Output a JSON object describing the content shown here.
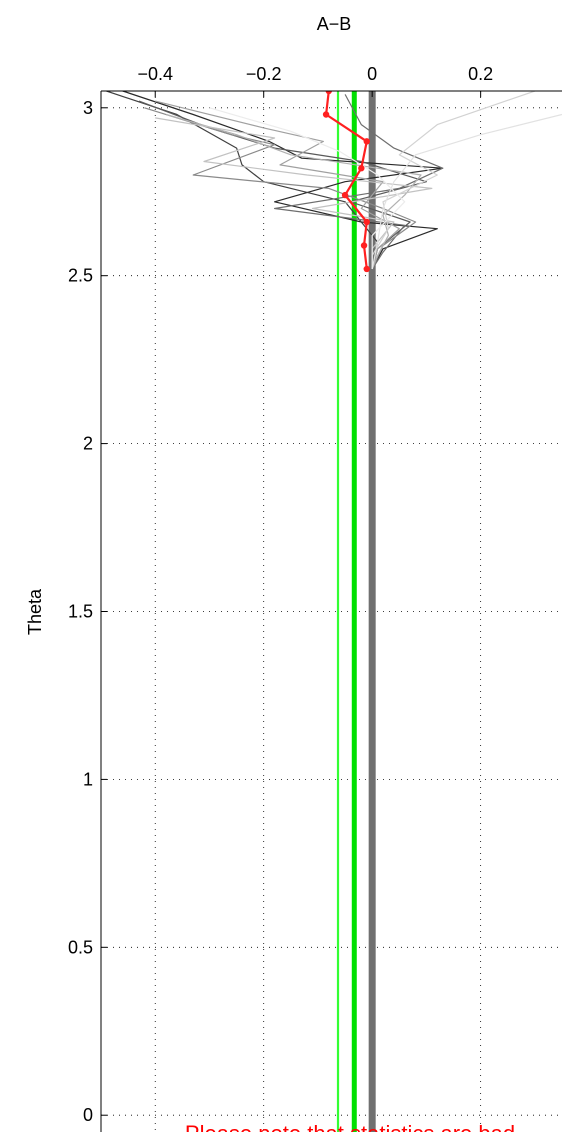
{
  "chart_data": {
    "type": "line",
    "title": "A−B",
    "xlabel": "A−B",
    "ylabel": "Theta",
    "xlim": [
      -0.5,
      0.35
    ],
    "ylim": [
      -0.05,
      3.05
    ],
    "x_ticks": [
      -0.4,
      -0.2,
      0,
      0.2
    ],
    "x_tick_labels": [
      "−0.4",
      "−0.2",
      "0",
      "0.2"
    ],
    "y_ticks": [
      0,
      0.5,
      1,
      1.5,
      2,
      2.5,
      3
    ],
    "y_tick_labels": [
      "0",
      "0.5",
      "1",
      "1.5",
      "2",
      "2.5",
      "3"
    ],
    "x_axis_position": "top",
    "grid": true,
    "grid_style": "dotted",
    "profiles_color": "#555555",
    "mean_color": "#ff2020",
    "green_color": "#00ee00",
    "zero_band_color": "#6e6e6e",
    "vertical_lines": [
      {
        "x": -0.063,
        "color": "#33ff33",
        "width": 2.2
      },
      {
        "x": -0.033,
        "color": "#00e000",
        "width": 5
      },
      {
        "x": 0.0,
        "color": "#707070",
        "width": 7
      }
    ],
    "series": [
      {
        "color": "#2a2a2a",
        "points": [
          [
            -0.46,
            3.05
          ],
          [
            -0.33,
            2.98
          ],
          [
            -0.19,
            2.9
          ],
          [
            -0.13,
            2.85
          ],
          [
            0.13,
            2.82
          ],
          [
            -0.05,
            2.78
          ],
          [
            -0.18,
            2.72
          ],
          [
            -0.02,
            2.66
          ],
          [
            0.12,
            2.64
          ],
          [
            0.02,
            2.58
          ],
          [
            0.0,
            2.52
          ]
        ]
      },
      {
        "color": "#404040",
        "points": [
          [
            -0.49,
            3.05
          ],
          [
            -0.36,
            2.98
          ],
          [
            -0.25,
            2.88
          ],
          [
            -0.24,
            2.83
          ],
          [
            -0.2,
            2.78
          ],
          [
            -0.05,
            2.72
          ],
          [
            -0.02,
            2.66
          ],
          [
            0.01,
            2.6
          ],
          [
            0.0,
            2.52
          ]
        ]
      },
      {
        "color": "#5a5a5a",
        "points": [
          [
            -0.43,
            3.02
          ],
          [
            -0.3,
            2.94
          ],
          [
            -0.18,
            2.88
          ],
          [
            -0.02,
            2.84
          ],
          [
            0.1,
            2.78
          ],
          [
            -0.04,
            2.72
          ],
          [
            0.07,
            2.66
          ],
          [
            0.01,
            2.58
          ],
          [
            0.0,
            2.52
          ]
        ]
      },
      {
        "color": "#6e6e6e",
        "points": [
          [
            -0.05,
            3.04
          ],
          [
            -0.02,
            2.95
          ],
          [
            0.04,
            2.88
          ],
          [
            0.13,
            2.82
          ],
          [
            0.05,
            2.76
          ],
          [
            -0.18,
            2.7
          ],
          [
            0.06,
            2.65
          ],
          [
            0.02,
            2.57
          ],
          [
            0.0,
            2.52
          ]
        ]
      },
      {
        "color": "#8a8a8a",
        "points": [
          [
            -0.42,
            3.0
          ],
          [
            -0.26,
            2.92
          ],
          [
            -0.18,
            2.89
          ],
          [
            -0.33,
            2.8
          ],
          [
            -0.08,
            2.76
          ],
          [
            0.02,
            2.7
          ],
          [
            0.08,
            2.66
          ],
          [
            0.02,
            2.59
          ],
          [
            0.0,
            2.52
          ]
        ]
      },
      {
        "color": "#a0a0a0",
        "points": [
          [
            -0.4,
            3.02
          ],
          [
            -0.2,
            2.94
          ],
          [
            -0.09,
            2.9
          ],
          [
            -0.17,
            2.83
          ],
          [
            0.02,
            2.78
          ],
          [
            -0.02,
            2.7
          ],
          [
            0.05,
            2.64
          ],
          [
            0.01,
            2.58
          ],
          [
            0.0,
            2.52
          ]
        ]
      },
      {
        "color": "#b0b0b0",
        "points": [
          [
            -0.38,
            2.98
          ],
          [
            -0.25,
            2.92
          ],
          [
            -0.15,
            2.86
          ],
          [
            0.09,
            2.8
          ],
          [
            0.06,
            2.74
          ],
          [
            0.02,
            2.68
          ],
          [
            0.03,
            2.62
          ],
          [
            0.01,
            2.56
          ],
          [
            0.0,
            2.52
          ]
        ]
      },
      {
        "color": "#c2c2c2",
        "points": [
          [
            -0.4,
            2.97
          ],
          [
            -0.18,
            2.91
          ],
          [
            -0.31,
            2.84
          ],
          [
            -0.12,
            2.8
          ],
          [
            0.11,
            2.76
          ],
          [
            -0.11,
            2.7
          ],
          [
            0.04,
            2.66
          ],
          [
            0.0,
            2.58
          ],
          [
            0.0,
            2.52
          ]
        ]
      },
      {
        "color": "#d2d2d2",
        "points": [
          [
            0.3,
            3.05
          ],
          [
            0.12,
            2.95
          ],
          [
            0.05,
            2.86
          ],
          [
            0.12,
            2.8
          ],
          [
            0.02,
            2.72
          ],
          [
            0.03,
            2.64
          ],
          [
            0.0,
            2.56
          ],
          [
            0.0,
            2.52
          ]
        ]
      },
      {
        "color": "#e2e2e2",
        "points": [
          [
            0.35,
            2.98
          ],
          [
            0.2,
            2.92
          ],
          [
            0.08,
            2.86
          ],
          [
            0.04,
            2.78
          ],
          [
            0.02,
            2.7
          ],
          [
            0.01,
            2.6
          ],
          [
            0.0,
            2.52
          ]
        ]
      },
      {
        "color": "#ececec",
        "points": [
          [
            -0.3,
            3.0
          ],
          [
            -0.15,
            2.93
          ],
          [
            -0.06,
            2.87
          ],
          [
            0.01,
            2.8
          ],
          [
            0.06,
            2.72
          ],
          [
            0.0,
            2.62
          ],
          [
            0.0,
            2.52
          ]
        ]
      }
    ],
    "mean_series": {
      "color": "#ff2020",
      "points": [
        [
          -0.08,
          3.05
        ],
        [
          -0.085,
          2.98
        ],
        [
          -0.01,
          2.9
        ],
        [
          -0.02,
          2.82
        ],
        [
          -0.05,
          2.74
        ],
        [
          -0.01,
          2.66
        ],
        [
          -0.015,
          2.59
        ],
        [
          -0.01,
          2.52
        ]
      ]
    },
    "note": {
      "text": "Please note that statistics are bad",
      "color": "#ff0000"
    }
  }
}
